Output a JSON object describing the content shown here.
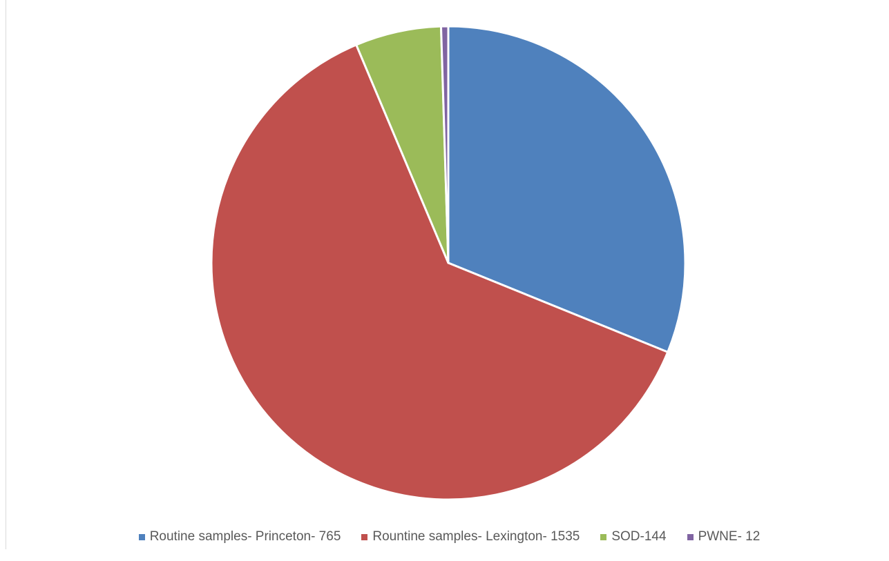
{
  "chart_data": {
    "type": "pie",
    "title": "",
    "categories": [
      "Routine samples- Princeton- 765",
      "Rountine samples- Lexington- 1535",
      "SOD-144",
      "PWNE- 12"
    ],
    "values": [
      765,
      1535,
      144,
      12
    ],
    "colors": [
      "#4F81BD",
      "#C0504D",
      "#9BBB59",
      "#8064A2"
    ],
    "start_angle_deg": 0,
    "direction": "clockwise",
    "slice_border_color": "#ffffff",
    "legend_position": "bottom"
  }
}
